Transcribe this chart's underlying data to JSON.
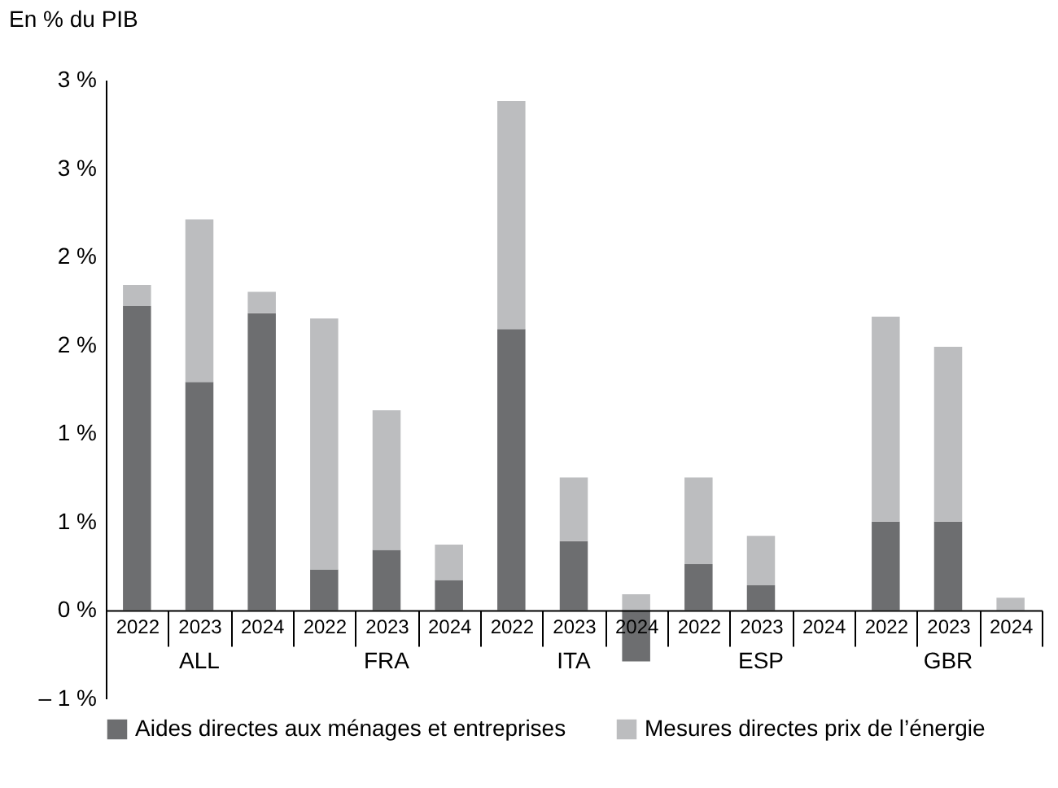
{
  "chart_data": {
    "type": "bar",
    "stacked": true,
    "ylabel": "En % du PIB",
    "categories": [
      "2022",
      "2023",
      "2024",
      "2022",
      "2023",
      "2024",
      "2022",
      "2023",
      "2024",
      "2022",
      "2023",
      "2024",
      "2022",
      "2023",
      "2024"
    ],
    "series": [
      {
        "name": "Aides directes aux ménages et entreprises",
        "color": "#6d6e70",
        "values": [
          1.72,
          1.29,
          1.68,
          0.23,
          0.34,
          0.17,
          1.59,
          0.39,
          -0.29,
          0.26,
          0.14,
          0,
          0.5,
          0.5,
          0
        ]
      },
      {
        "name": "Mesures directes prix de l’énergie",
        "color": "#bcbdbf",
        "values": [
          0.12,
          0.92,
          0.12,
          1.42,
          0.79,
          0.2,
          1.29,
          0.36,
          0.09,
          0.49,
          0.28,
          0,
          1.16,
          0.99,
          0.07
        ]
      }
    ],
    "ylim": [
      -0.5,
      3
    ],
    "yticks": [
      {
        "value": -0.5,
        "label": "– 1 %"
      },
      {
        "value": 0,
        "label": "0 %"
      },
      {
        "value": 0.5,
        "label": "1 %"
      },
      {
        "value": 1,
        "label": "1 %"
      },
      {
        "value": 1.5,
        "label": "2 %"
      },
      {
        "value": 2,
        "label": "2 %"
      },
      {
        "value": 2.5,
        "label": "3 %"
      },
      {
        "value": 3,
        "label": "3 %"
      }
    ],
    "annotations": [
      "ALL",
      "FRA",
      "ITA",
      "ESP",
      "GBR"
    ],
    "legend": "bottom",
    "grid": false
  }
}
